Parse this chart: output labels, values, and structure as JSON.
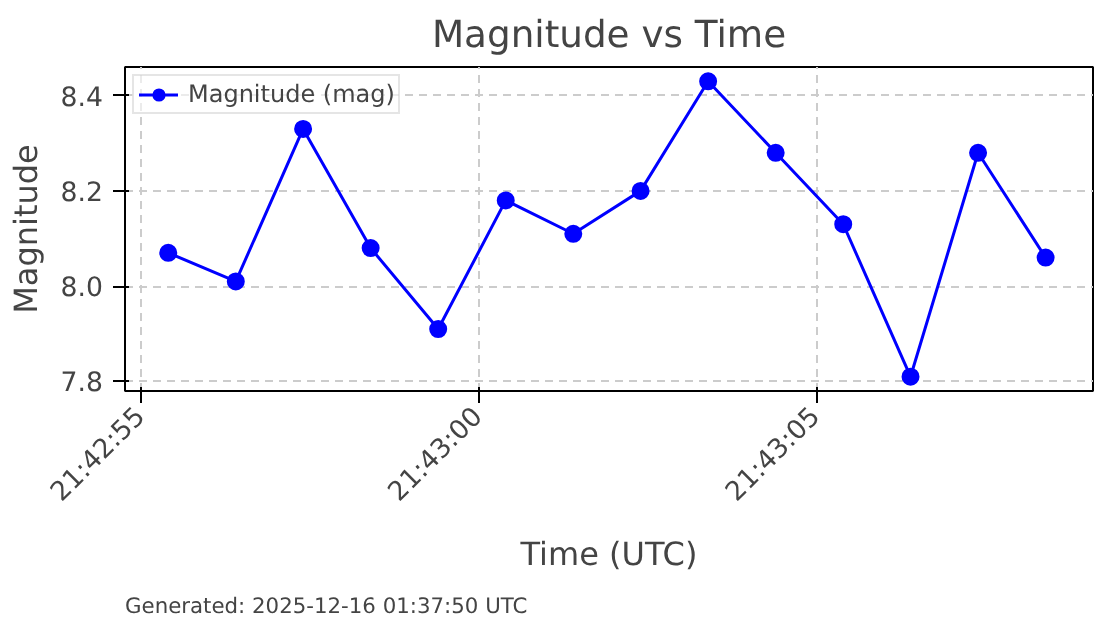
{
  "chart_data": {
    "type": "line",
    "title": "Magnitude vs Time",
    "xlabel": "Time (UTC)",
    "ylabel": "Magnitude",
    "x": [
      21.715389,
      21.715667,
      21.715944,
      21.716222,
      21.7165,
      21.716778,
      21.717056,
      21.717333,
      21.717611,
      21.717889,
      21.718167,
      21.718444,
      21.718722,
      21.719
    ],
    "series": [
      {
        "name": "Magnitude (mag)",
        "color": "#0000ff",
        "values": [
          8.07,
          8.01,
          8.33,
          8.08,
          7.91,
          8.18,
          8.11,
          8.2,
          8.43,
          8.28,
          8.13,
          7.81,
          8.28,
          8.06
        ]
      }
    ],
    "xlim": [
      21.715211,
      21.719195
    ],
    "ylim": [
      7.78,
      8.46
    ],
    "xticks": [
      {
        "value": 21.715278,
        "label": "21:42:55"
      },
      {
        "value": 21.716667,
        "label": "21:43:00"
      },
      {
        "value": 21.718056,
        "label": "21:43:05"
      }
    ],
    "yticks": [
      {
        "value": 7.8,
        "label": "7.8"
      },
      {
        "value": 8.0,
        "label": "8.0"
      },
      {
        "value": 8.2,
        "label": "8.2"
      },
      {
        "value": 8.4,
        "label": "8.4"
      }
    ],
    "grid": true,
    "legend": "top left",
    "marker": "circle",
    "line_style": "solid",
    "annotations": [
      "Generated: 2025-12-16 01:37:50 UTC"
    ]
  }
}
